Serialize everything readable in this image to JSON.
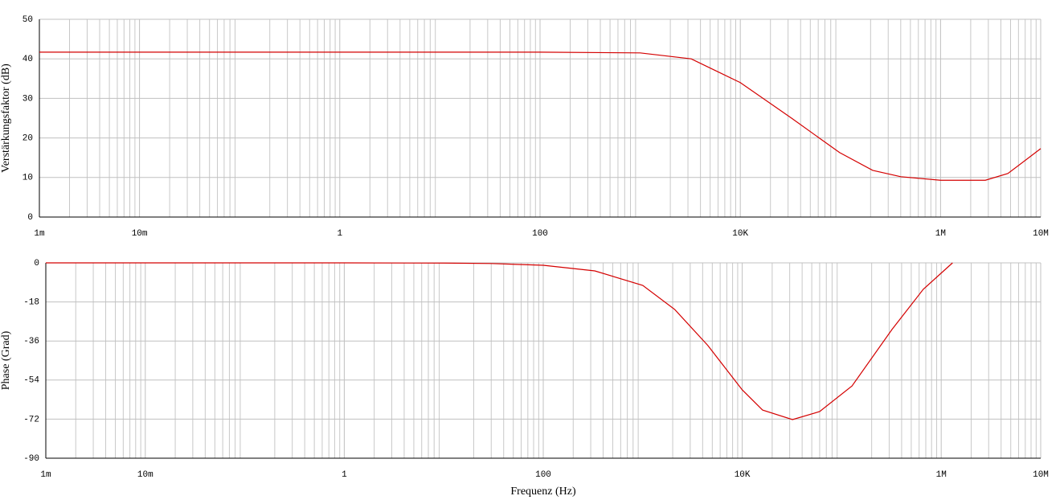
{
  "chart_data": [
    {
      "type": "line",
      "xscale": "log",
      "grid": true,
      "minor_grid": true,
      "ylabel": "Verstärkungsfaktor (dB)",
      "xlim": [
        0.001,
        10000000
      ],
      "ylim": [
        0,
        50
      ],
      "xticks": [
        {
          "value": 0.001,
          "label": "1m"
        },
        {
          "value": 0.01,
          "label": "10m"
        },
        1,
        100,
        {
          "value": 10000,
          "label": "10K"
        },
        {
          "value": 1000000,
          "label": "1M"
        },
        {
          "value": 10000000,
          "label": "10M"
        }
      ],
      "yticks": [
        0,
        10,
        20,
        30,
        40,
        50
      ],
      "x": [
        0.001,
        0.01,
        1,
        100,
        1000,
        3230,
        10000,
        32500,
        98000,
        210000,
        400000,
        1000000,
        2800000,
        4700000,
        10000000
      ],
      "series": [
        {
          "color": "#d40000",
          "values": [
            41.7,
            41.7,
            41.7,
            41.7,
            41.5,
            40,
            34,
            25,
            16.3,
            11.8,
            10.2,
            9.3,
            9.3,
            11,
            17.3
          ]
        }
      ]
    },
    {
      "type": "line",
      "xscale": "log",
      "grid": true,
      "minor_grid": true,
      "ylabel": "Phase (Grad)",
      "xlabel": "Frequenz (Hz)",
      "xlim": [
        0.001,
        10000000
      ],
      "ylim": [
        -90,
        0
      ],
      "xticks": [
        {
          "value": 0.001,
          "label": "1m"
        },
        {
          "value": 0.01,
          "label": "10m"
        },
        1,
        100,
        {
          "value": 10000,
          "label": "10K"
        },
        {
          "value": 1000000,
          "label": "1M"
        },
        {
          "value": 10000000,
          "label": "10M"
        }
      ],
      "yticks": [
        0,
        -18,
        -36,
        -54,
        -72,
        -90
      ],
      "x": [
        0.001,
        0.01,
        0.1,
        1,
        10,
        30,
        100,
        330,
        1000,
        2100,
        4500,
        10000,
        16000,
        32000,
        60000,
        127000,
        320000,
        660000,
        1300000
      ],
      "series": [
        {
          "color": "#d40000",
          "values": [
            0,
            0,
            0,
            0,
            -0.1,
            -0.3,
            -1.1,
            -3.7,
            -10.4,
            -21.5,
            -38,
            -58.5,
            -67.8,
            -72.2,
            -68.5,
            -56.7,
            -30.7,
            -12.2,
            0
          ]
        }
      ]
    }
  ]
}
